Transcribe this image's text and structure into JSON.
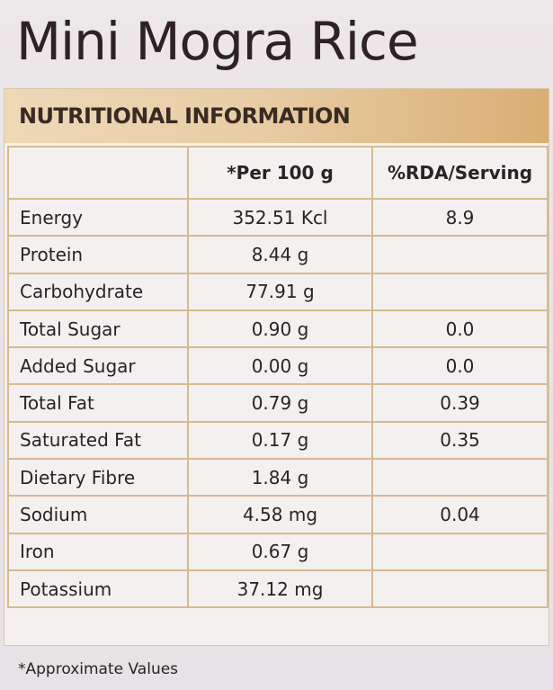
{
  "title": "Mini Mogra Rice",
  "section_heading": "NUTRITIONAL INFORMATION",
  "columns": {
    "nutrient": "",
    "per_100g": "*Per 100 g",
    "rda": "%RDA/Serving"
  },
  "rows": [
    {
      "nutrient": "Energy",
      "per_100g": "352.51 Kcl",
      "rda": "8.9"
    },
    {
      "nutrient": "Protein",
      "per_100g": "8.44 g",
      "rda": ""
    },
    {
      "nutrient": "Carbohydrate",
      "per_100g": "77.91 g",
      "rda": ""
    },
    {
      "nutrient": "Total Sugar",
      "per_100g": "0.90 g",
      "rda": "0.0"
    },
    {
      "nutrient": "Added Sugar",
      "per_100g": "0.00 g",
      "rda": "0.0"
    },
    {
      "nutrient": "Total Fat",
      "per_100g": "0.79 g",
      "rda": "0.39"
    },
    {
      "nutrient": "Saturated Fat",
      "per_100g": "0.17 g",
      "rda": "0.35"
    },
    {
      "nutrient": "Dietary Fibre",
      "per_100g": "1.84 g",
      "rda": ""
    },
    {
      "nutrient": "Sodium",
      "per_100g": "4.58 mg",
      "rda": "0.04"
    },
    {
      "nutrient": "Iron",
      "per_100g": "0.67 g",
      "rda": ""
    },
    {
      "nutrient": "Potassium",
      "per_100g": "37.12 mg",
      "rda": ""
    }
  ],
  "footnote": "*Approximate Values",
  "colors": {
    "band_start": "#eed8b8",
    "band_end": "#d9ae74",
    "grid_line": "#d8b98f",
    "text": "#2a2325"
  }
}
